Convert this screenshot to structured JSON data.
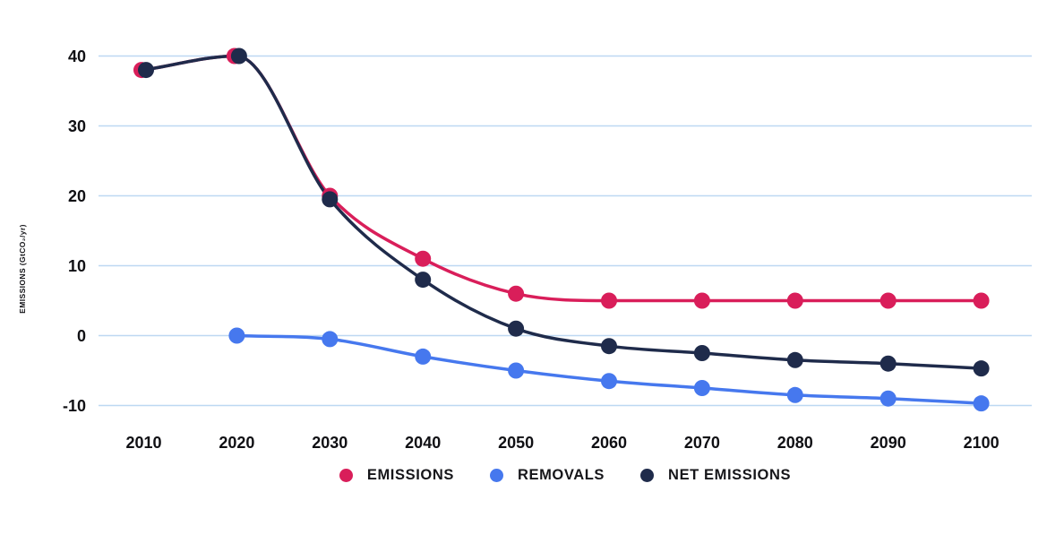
{
  "chart_data": {
    "type": "line",
    "title": "",
    "xlabel": "",
    "ylabel": "EMISSIONS (GtCO₂/yr)",
    "categories": [
      "2010",
      "2020",
      "2030",
      "2040",
      "2050",
      "2060",
      "2070",
      "2080",
      "2090",
      "2100"
    ],
    "y_ticks": [
      40,
      30,
      20,
      10,
      0,
      -10
    ],
    "ylim": [
      -10,
      40
    ],
    "grid": "horizontal",
    "gridline_color": "#BDD8F2",
    "background_color": "#ffffff",
    "legend_position": "bottom-center",
    "line_style": "smooth-monotone",
    "marker": "filled-circle",
    "series": [
      {
        "name": "EMISSIONS",
        "color": "#D91E5A",
        "values": [
          38,
          40,
          20,
          11,
          6,
          5,
          5,
          5,
          5,
          5
        ]
      },
      {
        "name": "REMOVALS",
        "color": "#4678EE",
        "values": [
          null,
          0,
          -0.5,
          -3,
          -5,
          -6.5,
          -7.5,
          -8.5,
          -9,
          -9.7
        ]
      },
      {
        "name": "NET EMISSIONS",
        "color": "#1F2B4B",
        "values": [
          38,
          40,
          19.5,
          8,
          1,
          -1.5,
          -2.5,
          -3.5,
          -4,
          -4.7
        ]
      }
    ]
  }
}
